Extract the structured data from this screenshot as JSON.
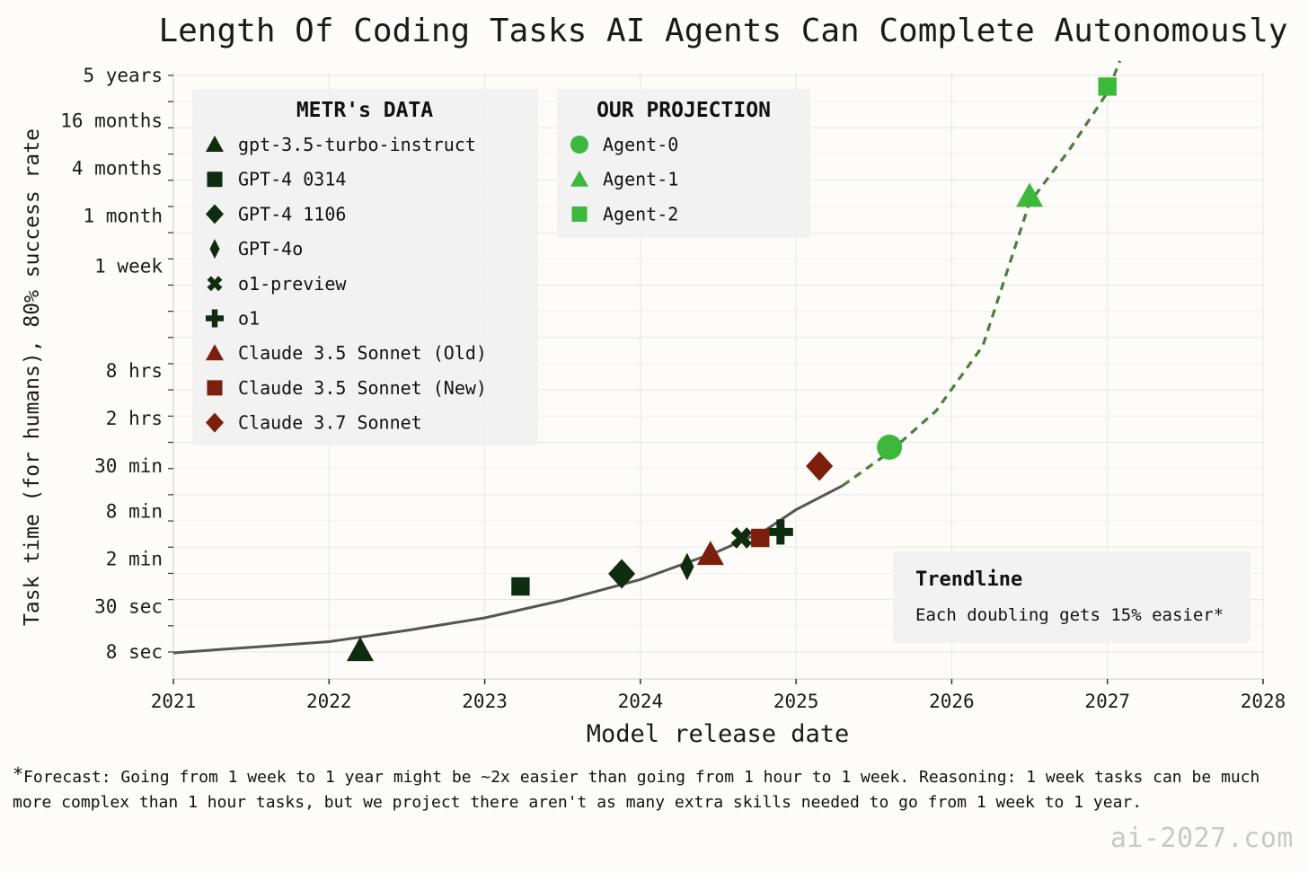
{
  "chart_data": {
    "type": "scatter",
    "title": "Length Of Coding Tasks AI Agents Can Complete Autonomously",
    "xlabel": "Model release date",
    "ylabel": "Task time (for humans), 80% success rate",
    "x_ticks": [
      2021,
      2022,
      2023,
      2024,
      2025,
      2026,
      2027,
      2028
    ],
    "xlim": [
      2021,
      2028
    ],
    "y_scale": "log",
    "y_unit": "minutes",
    "ylim_minutes": [
      0.09,
      4200000
    ],
    "y_ticks": [
      {
        "label": "5 years",
        "minutes": 2628000
      },
      {
        "label": "16 months",
        "minutes": 700800
      },
      {
        "label": "4 months",
        "minutes": 175200
      },
      {
        "label": "1 month",
        "minutes": 43800
      },
      {
        "label": "1 week",
        "minutes": 10080
      },
      {
        "label": "8 hrs",
        "minutes": 480
      },
      {
        "label": "2 hrs",
        "minutes": 120
      },
      {
        "label": "30 min",
        "minutes": 30
      },
      {
        "label": "8 min",
        "minutes": 8
      },
      {
        "label": "2 min",
        "minutes": 2
      },
      {
        "label": "30 sec",
        "minutes": 0.5
      },
      {
        "label": "8 sec",
        "minutes": 0.1333
      }
    ],
    "grid": true,
    "legend_groups": [
      {
        "title": "METR's DATA",
        "position": "top-left",
        "entries": [
          {
            "name": "gpt-3.5-turbo-instruct",
            "marker": "triangle",
            "color": "#0f2c10"
          },
          {
            "name": "GPT-4 0314",
            "marker": "square",
            "color": "#0f2c10"
          },
          {
            "name": "GPT-4 1106",
            "marker": "diamond",
            "color": "#0f2c10"
          },
          {
            "name": "GPT-4o",
            "marker": "thin-diamond",
            "color": "#0f2c10"
          },
          {
            "name": "o1-preview",
            "marker": "x",
            "color": "#0f2c10"
          },
          {
            "name": "o1",
            "marker": "plus",
            "color": "#0f2c10"
          },
          {
            "name": "Claude 3.5 Sonnet (Old)",
            "marker": "triangle",
            "color": "#7b1e0b"
          },
          {
            "name": "Claude 3.5 Sonnet (New)",
            "marker": "square",
            "color": "#7b1e0b"
          },
          {
            "name": "Claude 3.7 Sonnet",
            "marker": "diamond",
            "color": "#7b1e0b"
          }
        ]
      },
      {
        "title": "OUR PROJECTION",
        "position": "top-center",
        "entries": [
          {
            "name": "Agent-0",
            "marker": "circle",
            "color": "#3cb83c"
          },
          {
            "name": "Agent-1",
            "marker": "triangle",
            "color": "#3cb83c"
          },
          {
            "name": "Agent-2",
            "marker": "square",
            "color": "#3cb83c"
          }
        ]
      }
    ],
    "series": [
      {
        "name": "gpt-3.5-turbo-instruct",
        "x": 2022.2,
        "y": 0.14,
        "marker": "triangle",
        "color": "#0f2c10"
      },
      {
        "name": "GPT-4 0314",
        "x": 2023.23,
        "y": 0.9,
        "marker": "square",
        "color": "#0f2c10"
      },
      {
        "name": "GPT-4 1106",
        "x": 2023.88,
        "y": 1.3,
        "marker": "diamond",
        "color": "#0f2c10"
      },
      {
        "name": "GPT-4o",
        "x": 2024.3,
        "y": 1.6,
        "marker": "thin-diamond",
        "color": "#0f2c10"
      },
      {
        "name": "o1-preview",
        "x": 2024.65,
        "y": 3.7,
        "marker": "x",
        "color": "#0f2c10"
      },
      {
        "name": "o1",
        "x": 2024.9,
        "y": 4.4,
        "marker": "plus",
        "color": "#0f2c10"
      },
      {
        "name": "Claude 3.5 Sonnet (Old)",
        "x": 2024.45,
        "y": 2.3,
        "marker": "triangle",
        "color": "#7b1e0b"
      },
      {
        "name": "Claude 3.5 Sonnet (New)",
        "x": 2024.77,
        "y": 3.7,
        "marker": "square",
        "color": "#7b1e0b"
      },
      {
        "name": "Claude 3.7 Sonnet",
        "x": 2025.15,
        "y": 30,
        "marker": "diamond",
        "color": "#7b1e0b"
      },
      {
        "name": "Agent-0",
        "x": 2025.6,
        "y": 52,
        "marker": "circle",
        "color": "#3cb83c"
      },
      {
        "name": "Agent-1",
        "x": 2026.5,
        "y": 78000,
        "marker": "triangle",
        "color": "#3cb83c"
      },
      {
        "name": "Agent-2",
        "x": 2027.0,
        "y": 1900000,
        "marker": "square",
        "color": "#3cb83c"
      }
    ],
    "trendline": {
      "solid": {
        "color": "#555555",
        "points": [
          [
            2021.0,
            0.13
          ],
          [
            2022.0,
            0.18
          ],
          [
            2022.5,
            0.25
          ],
          [
            2023.0,
            0.36
          ],
          [
            2023.5,
            0.6
          ],
          [
            2024.0,
            1.1
          ],
          [
            2024.5,
            2.5
          ],
          [
            2024.8,
            4.6
          ],
          [
            2025.0,
            8.4
          ],
          [
            2025.3,
            17
          ]
        ]
      },
      "dashed": {
        "color": "#4a7f3f",
        "points": [
          [
            2025.3,
            17
          ],
          [
            2025.6,
            45
          ],
          [
            2025.9,
            150
          ],
          [
            2026.2,
            1000
          ],
          [
            2026.5,
            65000
          ],
          [
            2026.75,
            290000
          ],
          [
            2027.0,
            1600000
          ],
          [
            2027.08,
            4000000
          ]
        ]
      }
    },
    "annotation": {
      "title": "Trendline",
      "text": "Each doubling gets 15% easier*",
      "position": "bottom-right"
    }
  },
  "footnote": {
    "star": "*",
    "text": "Forecast: Going from 1 week to 1 year might be ~2x easier than going from 1 hour to 1 week. Reasoning: 1 week tasks can be much more complex than 1 hour tasks, but we project there aren't as many extra skills needed to go from 1 week to 1 year."
  },
  "watermark": "ai-2027.com"
}
